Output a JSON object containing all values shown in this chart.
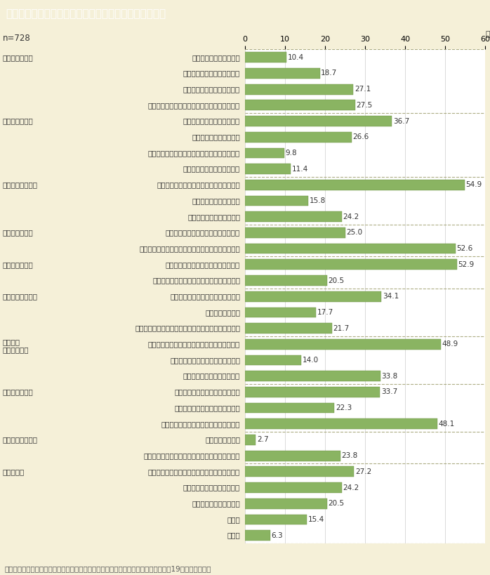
{
  "title": "第１－５－２図　離れて生活を始めるに当たっての困難",
  "n_label": "n=728",
  "footnote": "（備考）内閣府「配偶者からの暴力の被害者の自立支援等に関する調査結果」（平成19年）より作成。",
  "xlim": [
    0,
    60
  ],
  "xticks": [
    0,
    10,
    20,
    30,
    40,
    50,
    60
  ],
  "xlabel_suffix": "（%）",
  "bar_color": "#8ab462",
  "bar_edge_color": "#6a9042",
  "background_color": "#f5f0d8",
  "plot_bg_color": "#ffffff",
  "title_bg_color": "#7a6442",
  "title_text_color": "#ffffff",
  "label_color": "#333333",
  "value_color": "#333333",
  "separator_color": "#999966",
  "categories": [
    {
      "label": "公的施設に入所できない",
      "category": "【住居のこと】",
      "value": 10.4,
      "is_category_start": true,
      "separator_after": false
    },
    {
      "label": "民間賃貸住宅に入居できない",
      "category": "",
      "value": 18.7,
      "is_category_start": false,
      "separator_after": false
    },
    {
      "label": "公的賃貸住宅に入居できない",
      "category": "",
      "value": 27.1,
      "is_category_start": false,
      "separator_after": false
    },
    {
      "label": "民間賃貸住宅に入居するための保証人がいない",
      "category": "",
      "value": 27.5,
      "is_category_start": false,
      "separator_after": true
    },
    {
      "label": "適当な就職先が見つからない",
      "category": "【就労のこと】",
      "value": 36.7,
      "is_category_start": true,
      "separator_after": false
    },
    {
      "label": "就職に必要な技能がない",
      "category": "",
      "value": 26.6,
      "is_category_start": false,
      "separator_after": false
    },
    {
      "label": "どのように就職活動をすればよいかわからない",
      "category": "",
      "value": 9.8,
      "is_category_start": false,
      "separator_after": false
    },
    {
      "label": "就職に必要な保証人がいない",
      "category": "",
      "value": 11.4,
      "is_category_start": false,
      "separator_after": true
    },
    {
      "label": "当面の生活をするために必要なお金がない",
      "category": "【経済的なこと】",
      "value": 54.9,
      "is_category_start": true,
      "separator_after": false
    },
    {
      "label": "生活保護が受けられない",
      "category": "",
      "value": 15.8,
      "is_category_start": false,
      "separator_after": false
    },
    {
      "label": "児童扶養手当がもらえない",
      "category": "",
      "value": 24.2,
      "is_category_start": false,
      "separator_after": true
    },
    {
      "label": "健康保険や年金などの手続がめんどう",
      "category": "【手続のこと】",
      "value": 25.0,
      "is_category_start": true,
      "separator_after": false
    },
    {
      "label": "住所を知られないようにするため住民票を移せない",
      "category": "",
      "value": 52.6,
      "is_category_start": false,
      "separator_after": true
    },
    {
      "label": "自分の体調や気持ちが回復していない",
      "category": "【健康のこと】",
      "value": 52.9,
      "is_category_start": true,
      "separator_after": false
    },
    {
      "label": "お金がなくて病院での治療等を受けられない",
      "category": "",
      "value": 20.5,
      "is_category_start": false,
      "separator_after": true
    },
    {
      "label": "子どもの就学や保育所に関すること",
      "category": "【子どものこと】",
      "value": 34.1,
      "is_category_start": true,
      "separator_after": false
    },
    {
      "label": "子どもの問題行動",
      "category": "",
      "value": 17.7,
      "is_category_start": false,
      "separator_after": false
    },
    {
      "label": "子どもを相手のもとから取り戻すことや子どもの親権",
      "category": "",
      "value": 21.7,
      "is_category_start": false,
      "separator_after": true
    },
    {
      "label": "裁判や調停に時間やエネルギー，お金を要する",
      "category": "【裁判・\n調停のこと】",
      "value": 48.9,
      "is_category_start": true,
      "separator_after": false
    },
    {
      "label": "保護命令の申し立て手続がめんどう",
      "category": "",
      "value": 14.0,
      "is_category_start": false,
      "separator_after": false
    },
    {
      "label": "相手が離婚に応じてくれない",
      "category": "",
      "value": 33.8,
      "is_category_start": false,
      "separator_after": true
    },
    {
      "label": "相手からの追跡や嫌がらせがある",
      "category": "【相手のこと】",
      "value": 33.7,
      "is_category_start": true,
      "separator_after": false
    },
    {
      "label": "相手が子どもとの面会を要求する",
      "category": "",
      "value": 22.3,
      "is_category_start": false,
      "separator_after": false
    },
    {
      "label": "相手が怖くて家に荷物を取りに行けない",
      "category": "",
      "value": 48.1,
      "is_category_start": false,
      "separator_after": true
    },
    {
      "label": "母国語が通じない",
      "category": "【支援者のこと】",
      "value": 2.7,
      "is_category_start": true,
      "separator_after": false
    },
    {
      "label": "公的機関等の支援者から心ない言葉をかけられた",
      "category": "",
      "value": 23.8,
      "is_category_start": false,
      "separator_after": true
    },
    {
      "label": "どうすれば自立して生活できるのか情報がない",
      "category": "【その他】",
      "value": 27.2,
      "is_category_start": true,
      "separator_after": false
    },
    {
      "label": "相談できる人が周りにいない",
      "category": "",
      "value": 24.2,
      "is_category_start": false,
      "separator_after": false
    },
    {
      "label": "新しい環境になじめない",
      "category": "",
      "value": 20.5,
      "is_category_start": false,
      "separator_after": false
    },
    {
      "label": "その他",
      "category": "",
      "value": 15.4,
      "is_category_start": false,
      "separator_after": false
    },
    {
      "label": "無回答",
      "category": "",
      "value": 6.3,
      "is_category_start": false,
      "separator_after": true
    }
  ]
}
